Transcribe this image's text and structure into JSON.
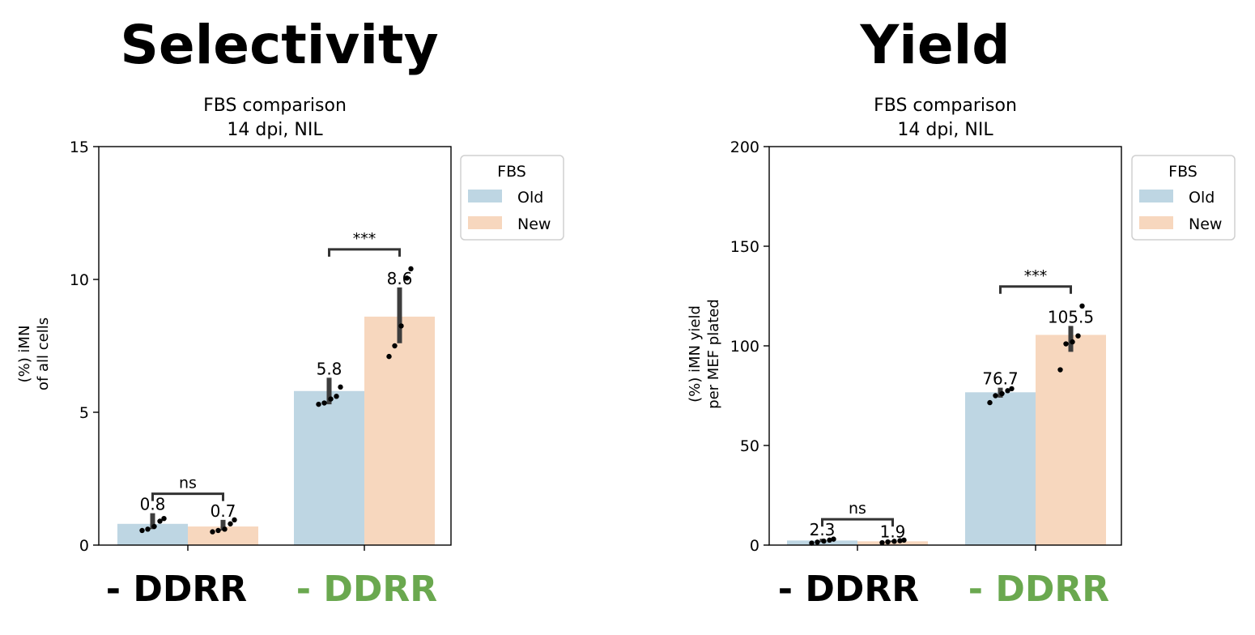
{
  "figure": {
    "panels": [
      {
        "heading": "Selectivity"
      },
      {
        "heading": "Yield"
      }
    ],
    "conditions": [
      {
        "label": "- DDRR",
        "color": "#000000"
      },
      {
        "label": "- DDRR",
        "color": "#6aa84f"
      }
    ]
  },
  "chart_data": [
    {
      "type": "bar",
      "title": "FBS comparison\n14 dpi, NIL",
      "xlabel": "",
      "ylabel": "(%) iMN\nof all cells",
      "ylim": [
        0,
        15
      ],
      "yticks": [
        0,
        5,
        10,
        15
      ],
      "grid": false,
      "legend": {
        "title": "FBS",
        "placement": "outside-top-right"
      },
      "categories": [
        "- DDRR",
        "- DDRR"
      ],
      "series": [
        {
          "name": "Old",
          "color": "#bed6e3",
          "values": [
            0.8,
            5.8
          ],
          "error": [
            [
              0.6,
              1.2
            ],
            [
              5.3,
              6.3
            ]
          ],
          "points": [
            [
              0.55,
              0.6,
              0.7,
              0.9,
              1.0
            ],
            [
              5.3,
              5.35,
              5.5,
              5.6,
              5.95
            ]
          ]
        },
        {
          "name": "New",
          "color": "#f7d7be",
          "values": [
            0.7,
            8.6
          ],
          "error": [
            [
              0.55,
              0.95
            ],
            [
              7.6,
              9.7
            ]
          ],
          "points": [
            [
              0.5,
              0.55,
              0.6,
              0.8,
              0.95
            ],
            [
              7.1,
              7.5,
              8.25,
              10.05,
              10.4
            ]
          ]
        }
      ],
      "data_labels": [
        [
          "0.8",
          "5.8"
        ],
        [
          "0.7",
          "8.6"
        ]
      ],
      "significance": [
        "ns",
        "***"
      ]
    },
    {
      "type": "bar",
      "title": "FBS comparison\n14 dpi, NIL",
      "xlabel": "",
      "ylabel": "(%) iMN yield\nper MEF plated",
      "ylim": [
        0,
        200
      ],
      "yticks": [
        0,
        50,
        100,
        150,
        200
      ],
      "grid": false,
      "legend": {
        "title": "FBS",
        "placement": "outside-top-right"
      },
      "categories": [
        "- DDRR",
        "- DDRR"
      ],
      "series": [
        {
          "name": "Old",
          "color": "#bed6e3",
          "values": [
            2.3,
            76.7
          ],
          "error": [
            [
              1.5,
              3.2
            ],
            [
              74.0,
              79.0
            ]
          ],
          "points": [
            [
              1.0,
              1.5,
              2.0,
              2.5,
              3.0
            ],
            [
              71.5,
              75.0,
              76.0,
              77.5,
              78.5
            ]
          ]
        },
        {
          "name": "New",
          "color": "#f7d7be",
          "values": [
            1.9,
            105.5
          ],
          "error": [
            [
              1.5,
              2.3
            ],
            [
              97.0,
              110.0
            ]
          ],
          "points": [
            [
              1.2,
              1.6,
              1.9,
              2.2,
              2.5
            ],
            [
              88.0,
              101.0,
              102.0,
              105.0,
              120.0
            ]
          ]
        }
      ],
      "data_labels": [
        [
          "2.3",
          "76.7"
        ],
        [
          "1.9",
          "105.5"
        ]
      ],
      "significance": [
        "ns",
        "***"
      ]
    }
  ]
}
